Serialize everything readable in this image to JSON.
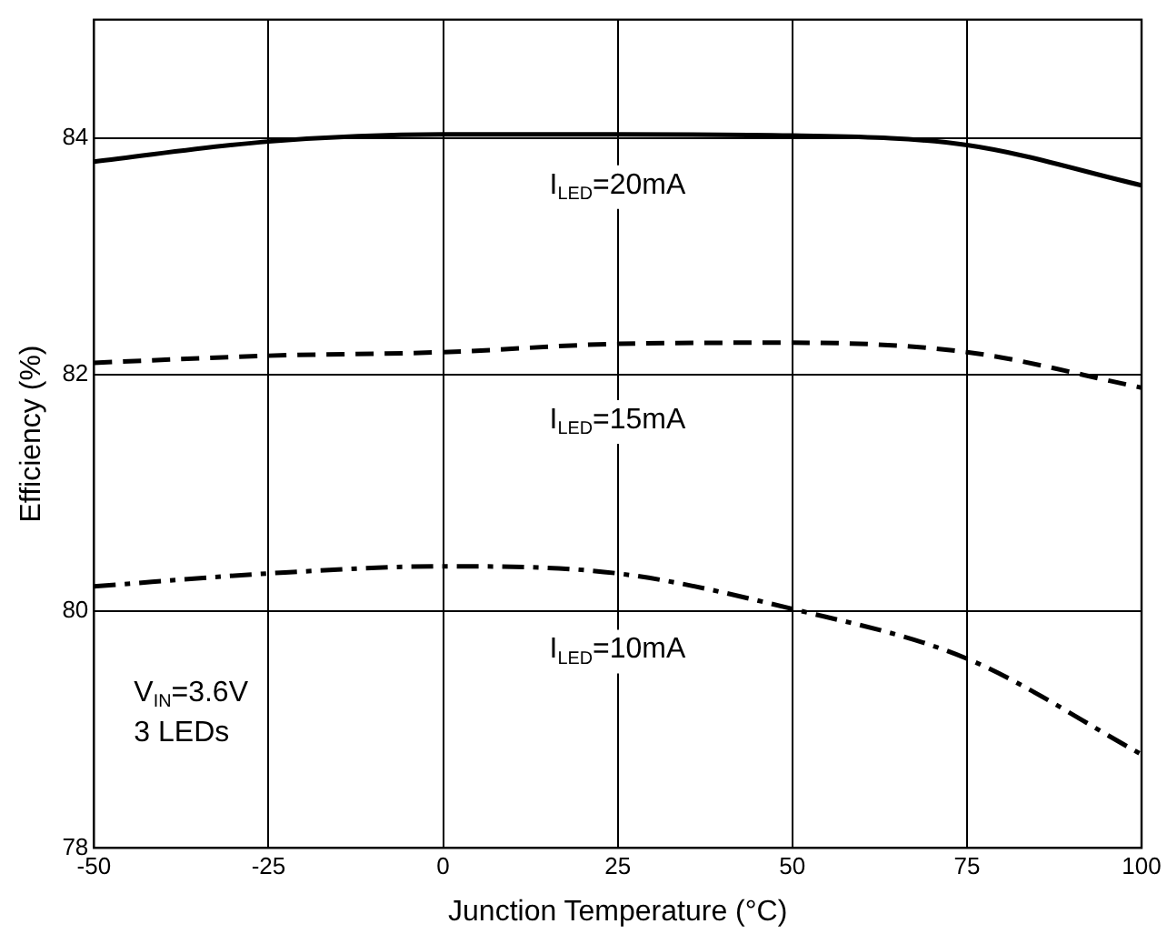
{
  "chart_data": {
    "type": "line",
    "xlabel": "Junction Temperature (°C)",
    "ylabel": "Efficiency (%)",
    "x": [
      -50,
      -25,
      0,
      25,
      50,
      75,
      100
    ],
    "series": [
      {
        "name": "I$_{LED}$=20mA",
        "color": "#000000",
        "line_style": "solid",
        "values": [
          83.8,
          83.97,
          84.03,
          84.03,
          84.02,
          83.94,
          83.6
        ]
      },
      {
        "name": "I$_{LED}$=15mA",
        "color": "#000000",
        "line_style": "dashed",
        "values": [
          82.1,
          82.16,
          82.19,
          82.26,
          82.27,
          82.19,
          81.89
        ]
      },
      {
        "name": "I$_{LED}$=10mA",
        "color": "#000000",
        "line_style": "dashdot",
        "values": [
          80.21,
          80.32,
          80.38,
          80.32,
          80.02,
          79.6,
          78.79
        ]
      }
    ],
    "xlim": [
      -50,
      100
    ],
    "xticks": [
      -50,
      -25,
      0,
      25,
      50,
      75,
      100
    ],
    "ylim": [
      78,
      85
    ],
    "yticks": [
      78,
      80,
      82,
      84
    ],
    "grid": true,
    "legend": false,
    "marker": "none",
    "annotations": [
      "V$_{IN}$=3.6V",
      "3 LEDs"
    ]
  }
}
